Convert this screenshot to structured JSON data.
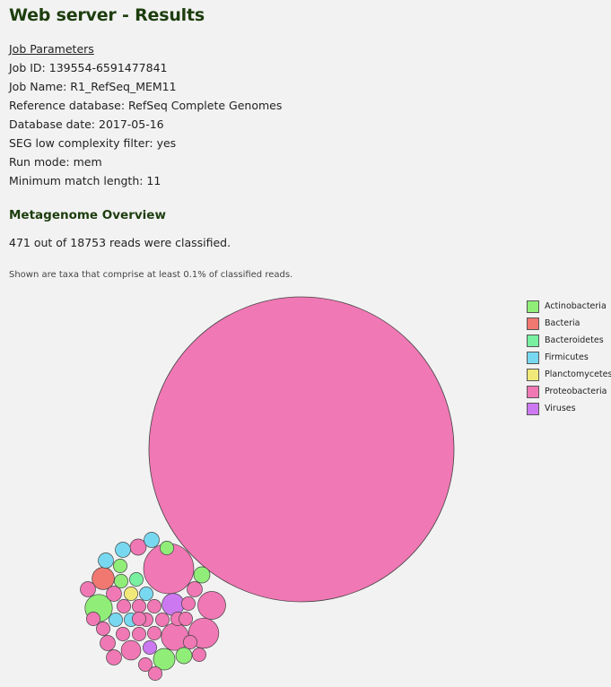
{
  "page": {
    "title": "Web server - Results"
  },
  "job": {
    "header": "Job Parameters",
    "job_id": "Job ID: 139554-6591477841",
    "job_name": "Job Name: R1_RefSeq_MEM11",
    "reference_db": "Reference database: RefSeq Complete Genomes",
    "db_date": "Database date: 2017-05-16",
    "seg_filter": "SEG low complexity filter: yes",
    "run_mode": "Run mode: mem",
    "min_match": "Minimum match length: 11"
  },
  "overview": {
    "title": "Metagenome Overview",
    "reads_text": "471 out of 18753 reads were classified.",
    "note": "Shown are taxa that comprise at least 0.1% of classified reads."
  },
  "legend": [
    {
      "label": "Actinobacteria",
      "color": "#90ee78"
    },
    {
      "label": "Bacteria",
      "color": "#f07870"
    },
    {
      "label": "Bacteroidetes",
      "color": "#78f0a0"
    },
    {
      "label": "Firmicutes",
      "color": "#78d8f0"
    },
    {
      "label": "Planctomycetes",
      "color": "#f0e878"
    },
    {
      "label": "Proteobacteria",
      "color": "#f078b4"
    },
    {
      "label": "Viruses",
      "color": "#cc78f0"
    }
  ],
  "chart_data": {
    "type": "bubble",
    "value_unit": "relative bubble area (estimated)",
    "bubbles": [
      {
        "group": "Proteobacteria",
        "value": 100
      },
      {
        "group": "Proteobacteria",
        "value": 2.7
      },
      {
        "group": "Proteobacteria",
        "value": 0.98
      },
      {
        "group": "Proteobacteria",
        "value": 0.83
      },
      {
        "group": "Proteobacteria",
        "value": 0.8
      },
      {
        "group": "Actinobacteria",
        "value": 0.8
      },
      {
        "group": "Bacteria",
        "value": 0.53
      },
      {
        "group": "Actinobacteria",
        "value": 0.5
      },
      {
        "group": "Viruses",
        "value": 0.53
      },
      {
        "group": "Proteobacteria",
        "value": 0.41
      },
      {
        "group": "Actinobacteria",
        "value": 0.28
      },
      {
        "group": "Actinobacteria",
        "value": 0.28
      },
      {
        "group": "Proteobacteria",
        "value": 0.28
      },
      {
        "group": "Firmicutes",
        "value": 0.25
      },
      {
        "group": "Firmicutes",
        "value": 0.25
      },
      {
        "group": "Firmicutes",
        "value": 0.25
      },
      {
        "group": "Firmicutes",
        "value": 0.2
      },
      {
        "group": "Firmicutes",
        "value": 0.2
      },
      {
        "group": "Firmicutes",
        "value": 0.2
      },
      {
        "group": "Actinobacteria",
        "value": 0.2
      },
      {
        "group": "Actinobacteria",
        "value": 0.2
      },
      {
        "group": "Actinobacteria",
        "value": 0.2
      },
      {
        "group": "Bacteroidetes",
        "value": 0.2
      },
      {
        "group": "Planctomycetes",
        "value": 0.2
      },
      {
        "group": "Viruses",
        "value": 0.2
      },
      {
        "group": "Proteobacteria",
        "value": 0.25
      },
      {
        "group": "Proteobacteria",
        "value": 0.25
      },
      {
        "group": "Proteobacteria",
        "value": 0.25
      },
      {
        "group": "Proteobacteria",
        "value": 0.25
      },
      {
        "group": "Proteobacteria",
        "value": 0.25
      },
      {
        "group": "Proteobacteria",
        "value": 0.2
      },
      {
        "group": "Proteobacteria",
        "value": 0.2
      },
      {
        "group": "Proteobacteria",
        "value": 0.2
      },
      {
        "group": "Proteobacteria",
        "value": 0.2
      },
      {
        "group": "Proteobacteria",
        "value": 0.2
      },
      {
        "group": "Proteobacteria",
        "value": 0.2
      },
      {
        "group": "Proteobacteria",
        "value": 0.2
      },
      {
        "group": "Proteobacteria",
        "value": 0.2
      },
      {
        "group": "Proteobacteria",
        "value": 0.2
      },
      {
        "group": "Proteobacteria",
        "value": 0.2
      },
      {
        "group": "Proteobacteria",
        "value": 0.2
      },
      {
        "group": "Proteobacteria",
        "value": 0.2
      },
      {
        "group": "Proteobacteria",
        "value": 0.2
      },
      {
        "group": "Proteobacteria",
        "value": 0.2
      },
      {
        "group": "Proteobacteria",
        "value": 0.2
      },
      {
        "group": "Proteobacteria",
        "value": 0.2
      },
      {
        "group": "Proteobacteria",
        "value": 0.2
      },
      {
        "group": "Proteobacteria",
        "value": 0.2
      }
    ]
  }
}
